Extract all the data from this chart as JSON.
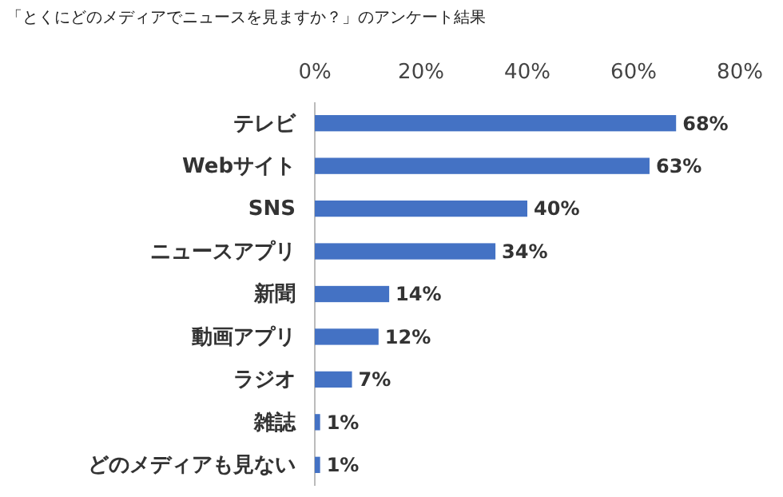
{
  "chart_data": {
    "type": "bar",
    "orientation": "horizontal",
    "title": "「とくにどのメディアでニュースを見ますか？」のアンケート結果",
    "categories": [
      "テレビ",
      "Webサイト",
      "SNS",
      "ニュースアプリ",
      "新聞",
      "動画アプリ",
      "ラジオ",
      "雑誌",
      "どのメディアも見ない"
    ],
    "values": [
      68,
      63,
      40,
      34,
      14,
      12,
      7,
      1,
      1
    ],
    "value_labels": [
      "68%",
      "63%",
      "40%",
      "34%",
      "14%",
      "12%",
      "7%",
      "1%",
      "1%"
    ],
    "color": "#4472c4",
    "xlim": [
      0,
      80
    ],
    "xticks": [
      {
        "value": 0,
        "label": "0%"
      },
      {
        "value": 20,
        "label": "20%"
      },
      {
        "value": 40,
        "label": "40%"
      },
      {
        "value": 60,
        "label": "60%"
      },
      {
        "value": 80,
        "label": "80%"
      }
    ],
    "grid": false
  }
}
